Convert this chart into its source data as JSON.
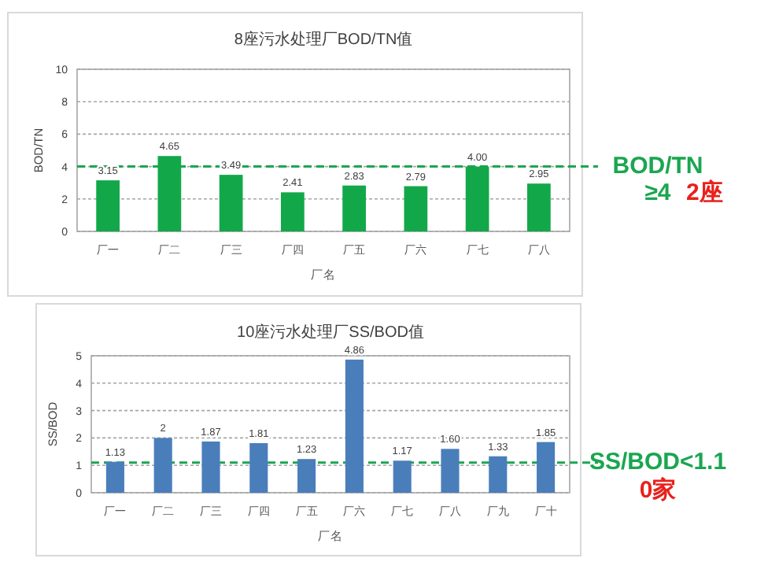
{
  "chart_data": [
    {
      "type": "bar",
      "title": "8座污水处理厂BOD/TN值",
      "xlabel": "厂名",
      "ylabel": "BOD/TN",
      "categories": [
        "厂一",
        "厂二",
        "厂三",
        "厂四",
        "厂五",
        "厂六",
        "厂七",
        "厂八"
      ],
      "series": [
        {
          "color": "#12a84a",
          "values": [
            3.15,
            4.65,
            3.49,
            2.41,
            2.83,
            2.79,
            4.0,
            2.95
          ],
          "value_labels": [
            "3.15",
            "4.65",
            "3.49",
            "2.41",
            "2.83",
            "2.79",
            "4.00",
            "2.95"
          ]
        }
      ],
      "ylim": [
        0,
        10
      ],
      "yticks": [
        0,
        2,
        4,
        6,
        8,
        10
      ],
      "grid": "y",
      "ref_lines": [
        {
          "axis": "y",
          "value": 4,
          "label": "BOD/TN ≥4",
          "color": "#1aa650",
          "line_style": "dashed"
        }
      ],
      "annotations": [
        "2座"
      ]
    },
    {
      "type": "bar",
      "title": "10座污水处理厂SS/BOD值",
      "xlabel": "厂名",
      "ylabel": "SS/BOD",
      "categories": [
        "厂一",
        "厂二",
        "厂三",
        "厂四",
        "厂五",
        "厂六",
        "厂七",
        "厂八",
        "厂九",
        "厂十"
      ],
      "series": [
        {
          "color": "#4a7ebb",
          "values": [
            1.13,
            2,
            1.87,
            1.81,
            1.23,
            4.86,
            1.17,
            1.6,
            1.33,
            1.85
          ],
          "value_labels": [
            "1.13",
            "2",
            "1.87",
            "1.81",
            "1.23",
            "4.86",
            "1.17",
            "1.60",
            "1.33",
            "1.85"
          ]
        }
      ],
      "ylim": [
        0,
        5
      ],
      "yticks": [
        0,
        1,
        2,
        3,
        4,
        5
      ],
      "grid": "y",
      "ref_lines": [
        {
          "axis": "y",
          "value": 1.1,
          "label": "SS/BOD<1.1",
          "color": "#1aa650",
          "line_style": "dashed"
        }
      ],
      "annotations": [
        "0家"
      ]
    }
  ]
}
